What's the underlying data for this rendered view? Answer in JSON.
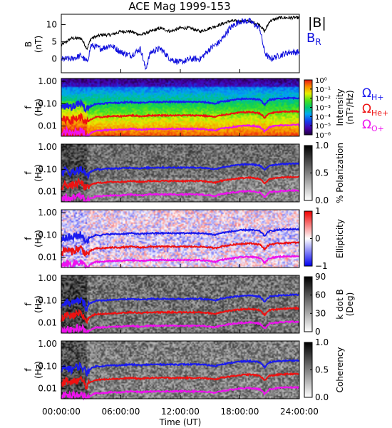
{
  "chart_data": [
    {
      "type": "line",
      "title": "ACE Mag 1999-153",
      "ylabel_main": "B",
      "ylabel_unit": "(nT)",
      "yticks": [
        "10",
        "5",
        "0"
      ],
      "ylim": [
        -4,
        13
      ],
      "series": [
        {
          "name": "|B|",
          "color": "#000000",
          "x": [
            0,
            1,
            2,
            2.6,
            3,
            4,
            5,
            6,
            7,
            8,
            9,
            10,
            11,
            12,
            13,
            14,
            15,
            16,
            17,
            18,
            19,
            20,
            20.5,
            21,
            22,
            23,
            24
          ],
          "values": [
            4,
            6,
            6,
            3,
            6,
            7,
            7,
            8,
            8,
            7,
            8,
            9,
            8,
            9,
            9,
            8,
            9,
            10,
            11,
            11,
            11,
            10,
            8,
            11,
            12,
            12,
            12
          ]
        },
        {
          "name": "B",
          "subscript": "R",
          "color": "#1010dd",
          "x": [
            0,
            1,
            2,
            2.6,
            3,
            4,
            5,
            6,
            7,
            8,
            8.5,
            9,
            10,
            11,
            12,
            13,
            14,
            15,
            16,
            17,
            18,
            19,
            20,
            20.5,
            21,
            22,
            23,
            24
          ],
          "values": [
            0,
            0,
            1,
            -1,
            4,
            3,
            4,
            2,
            1,
            3,
            -3,
            2,
            3,
            0,
            -1,
            0,
            0,
            3,
            5,
            9,
            11,
            11,
            9,
            2,
            0,
            1,
            2,
            2
          ]
        }
      ]
    },
    {
      "type": "heatmap",
      "ylabel": "f",
      "ylabel_unit": "(Hz)",
      "yticks": [
        "1.00",
        "0.10",
        "0.01"
      ],
      "colorbar_label": "Intensity",
      "colorbar_unit": "(nT²/Hz)",
      "colorbar_ticks": [
        "10⁰",
        "10⁻¹",
        "10⁻²",
        "10⁻³",
        "10⁻⁴",
        "10⁻⁵",
        "10⁻⁶"
      ],
      "colorbar_range": [
        -6.5,
        0.3
      ],
      "legend": [
        {
          "symbol": "Ω",
          "sub": "H+",
          "color": "#1a1aee"
        },
        {
          "symbol": "Ω",
          "sub": "He+",
          "color": "#ee1111"
        },
        {
          "symbol": "Ω",
          "sub": "O+",
          "color": "#ee11ee"
        }
      ]
    },
    {
      "type": "heatmap",
      "ylabel": "f",
      "ylabel_unit": "(Hz)",
      "yticks": [
        "1.00",
        "0.10",
        "0.01"
      ],
      "colorbar_label": "% Polarization",
      "colorbar_ticks": [
        "1.0",
        "0.5",
        "0.0"
      ],
      "colorbar_range": [
        0,
        1
      ]
    },
    {
      "type": "heatmap",
      "ylabel": "f",
      "ylabel_unit": "(Hz)",
      "yticks": [
        "1.00",
        "0.10",
        "0.01"
      ],
      "colorbar_label": "Ellipticity",
      "colorbar_ticks": [
        "1",
        "0",
        "−1"
      ],
      "colorbar_range": [
        -1,
        1
      ]
    },
    {
      "type": "heatmap",
      "ylabel": "f",
      "ylabel_unit": "(Hz)",
      "yticks": [
        "1.00",
        "0.10",
        "0.01"
      ],
      "colorbar_label": "k dot B",
      "colorbar_unit": "(Deg)",
      "colorbar_ticks": [
        "90",
        "60",
        "30",
        "0"
      ],
      "colorbar_range": [
        0,
        90
      ]
    },
    {
      "type": "heatmap",
      "ylabel": "f",
      "ylabel_unit": "(Hz)",
      "yticks": [
        "1.00",
        "0.10",
        "0.01"
      ],
      "colorbar_label": "Coherency",
      "colorbar_ticks": [
        "1.0",
        "0.5",
        "0.0"
      ],
      "colorbar_range": [
        0,
        1
      ]
    }
  ],
  "cyclotron": {
    "hours": [
      0,
      0.5,
      1,
      1.5,
      2,
      2.5,
      3,
      3.5,
      4,
      5,
      6,
      7,
      8,
      9,
      10,
      11,
      12,
      13,
      14,
      15,
      15.5,
      16,
      17,
      18,
      19,
      20,
      20.5,
      21,
      22,
      23,
      24
    ],
    "h_plus_hz": [
      0.06,
      0.09,
      0.07,
      0.09,
      0.1,
      0.05,
      0.08,
      0.1,
      0.1,
      0.11,
      0.11,
      0.12,
      0.11,
      0.12,
      0.12,
      0.12,
      0.12,
      0.12,
      0.12,
      0.11,
      0.1,
      0.12,
      0.14,
      0.16,
      0.17,
      0.15,
      0.09,
      0.15,
      0.17,
      0.18,
      0.18
    ]
  },
  "x_axis": {
    "xlabel": "Time (UT)",
    "ticks": [
      "00:00:00",
      "06:00:00",
      "12:00:00",
      "18:00:00",
      "24:00:00"
    ],
    "range_hours": [
      0,
      24
    ]
  }
}
